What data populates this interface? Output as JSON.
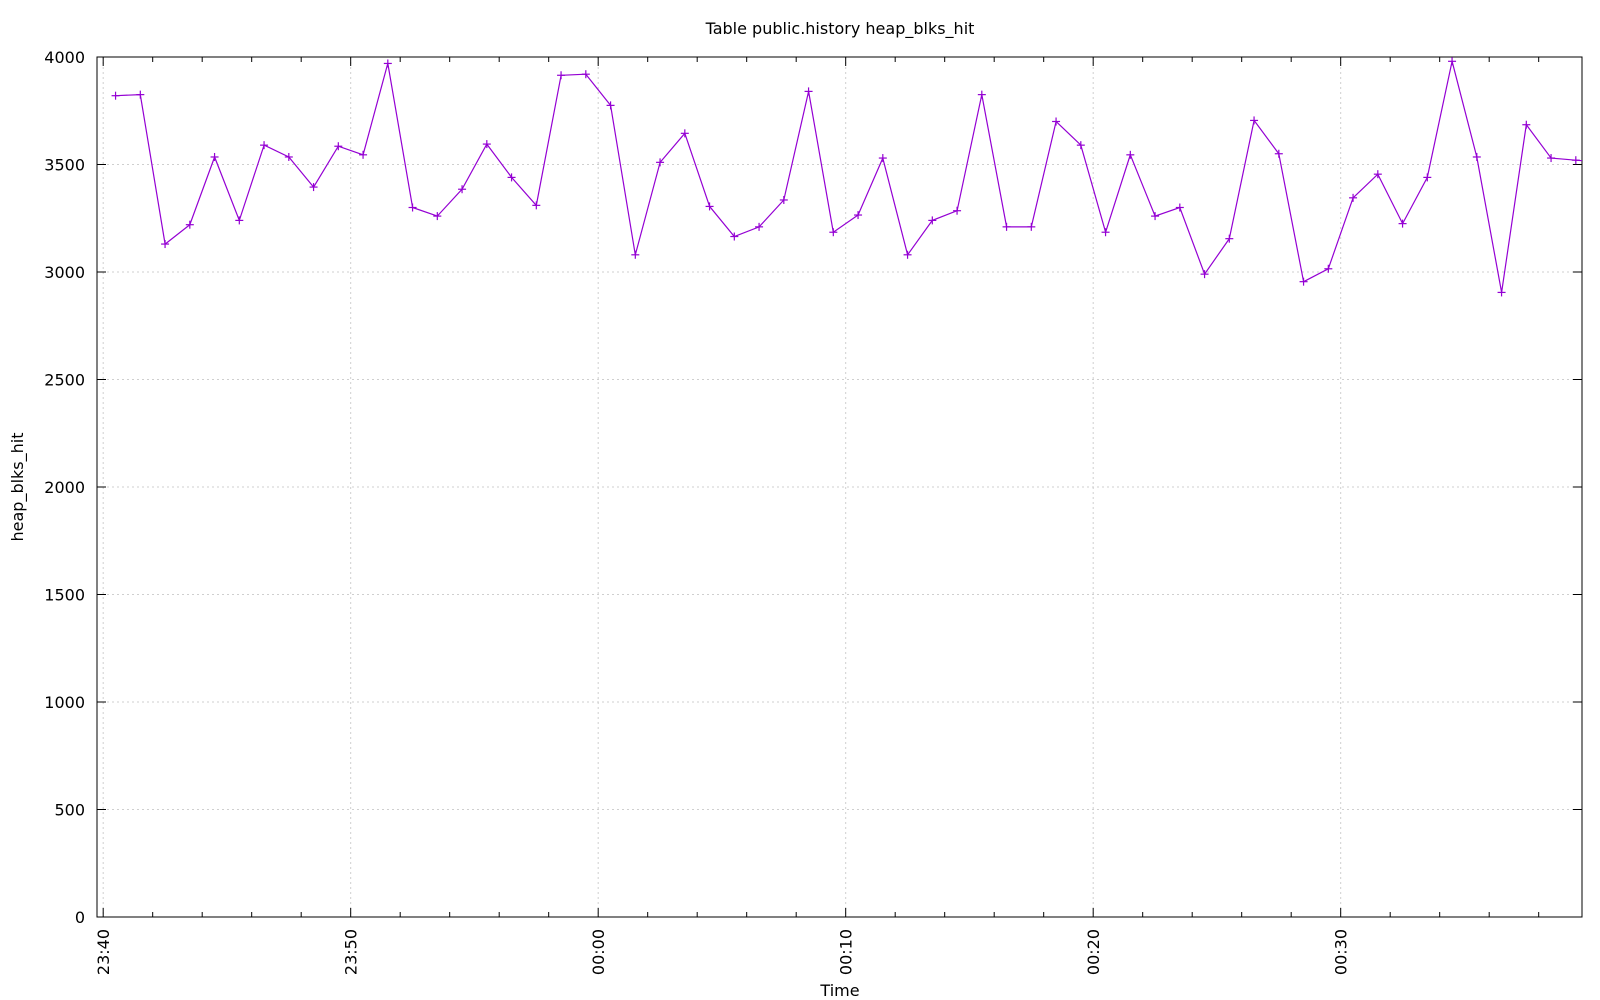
{
  "chart_data": {
    "type": "line",
    "title": "Table public.history heap_blks_hit",
    "xlabel": "Time",
    "ylabel": "heap_blks_hit",
    "ylim": [
      0,
      4000
    ],
    "yticks": [
      0,
      500,
      1000,
      1500,
      2000,
      2500,
      3000,
      3500,
      4000
    ],
    "xlim": [
      "23:39:45",
      "00:39:45"
    ],
    "xticks": [
      "23:40",
      "23:50",
      "00:00",
      "00:10",
      "00:20",
      "00:30"
    ],
    "grid": true,
    "legend": "none",
    "colors": {
      "series": "#9400d3",
      "grid": "#cfcfcf",
      "axis": "#000000"
    },
    "series": [
      {
        "marker": "plus",
        "x": [
          "23:40:30",
          "23:41:30",
          "23:42:30",
          "23:43:30",
          "23:44:30",
          "23:45:30",
          "23:46:30",
          "23:47:30",
          "23:48:30",
          "23:49:30",
          "23:50:30",
          "23:51:30",
          "23:52:30",
          "23:53:30",
          "23:54:30",
          "23:55:30",
          "23:56:30",
          "23:57:30",
          "23:58:30",
          "23:59:30",
          "00:00:30",
          "00:01:30",
          "00:02:30",
          "00:03:30",
          "00:04:30",
          "00:05:30",
          "00:06:30",
          "00:07:30",
          "00:08:30",
          "00:09:30",
          "00:10:30",
          "00:11:30",
          "00:12:30",
          "00:13:30",
          "00:14:30",
          "00:15:30",
          "00:16:30",
          "00:17:30",
          "00:18:30",
          "00:19:30",
          "00:20:30",
          "00:21:30",
          "00:22:30",
          "00:23:30",
          "00:24:30",
          "00:25:30",
          "00:26:30",
          "00:27:30",
          "00:28:30",
          "00:29:30",
          "00:30:30",
          "00:31:30",
          "00:32:30",
          "00:33:30",
          "00:34:30",
          "00:35:30",
          "00:36:30",
          "00:37:30",
          "00:38:30",
          "00:39:30"
        ],
        "values": [
          3820,
          3825,
          3130,
          3220,
          3535,
          3240,
          3590,
          3535,
          3395,
          3585,
          3545,
          3970,
          3300,
          3260,
          3385,
          3595,
          3440,
          3310,
          3915,
          3920,
          3775,
          3080,
          3510,
          3645,
          3305,
          3165,
          3210,
          3335,
          3840,
          3185,
          3265,
          3530,
          3080,
          3240,
          3285,
          3825,
          3210,
          3210,
          3700,
          3590,
          3185,
          3545,
          3260,
          3300,
          2990,
          3155,
          3705,
          3550,
          2955,
          3015,
          3345,
          3455,
          3225,
          3440,
          3980,
          3535,
          2905,
          3685,
          3530,
          3520
        ]
      }
    ]
  }
}
